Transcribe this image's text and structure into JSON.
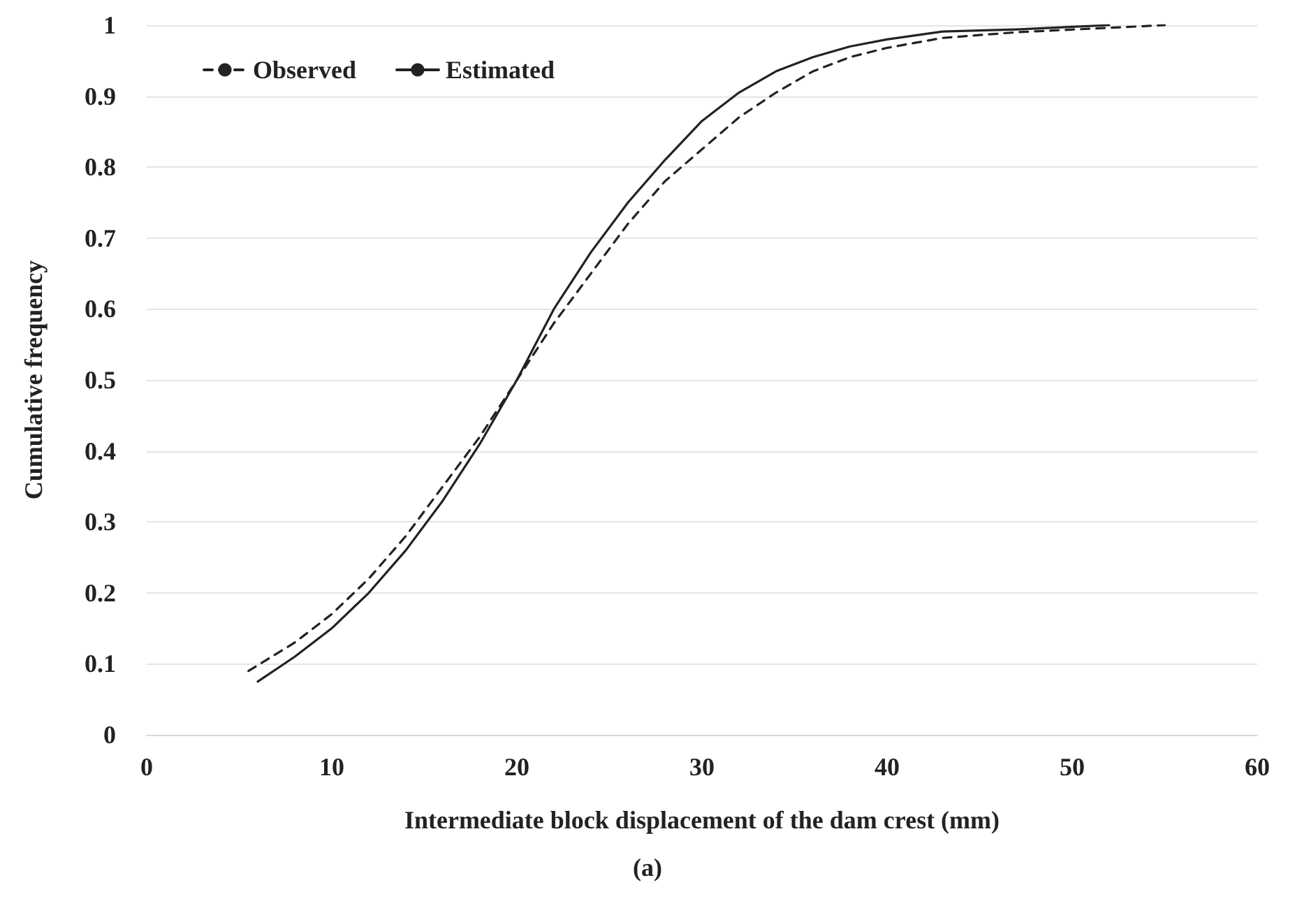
{
  "chart_data": {
    "type": "line",
    "xlabel": "Intermediate block displacement of the dam crest (mm)",
    "ylabel": "Cumulative frequency",
    "annotations": [
      "(a)"
    ],
    "series": [
      {
        "name": "Observed",
        "color": "#222222",
        "line_style": "dashed",
        "x": [
          5.5,
          8,
          10,
          12,
          14,
          16,
          18,
          20,
          22,
          24,
          26,
          28,
          30,
          32,
          34,
          36,
          38,
          40,
          43,
          47,
          51,
          55
        ],
        "values": [
          0.09,
          0.13,
          0.17,
          0.22,
          0.28,
          0.35,
          0.42,
          0.5,
          0.58,
          0.65,
          0.72,
          0.78,
          0.825,
          0.87,
          0.905,
          0.935,
          0.955,
          0.968,
          0.982,
          0.99,
          0.995,
          1.0
        ]
      },
      {
        "name": "Estimated",
        "color": "#222222",
        "line_style": "solid",
        "x": [
          6,
          8,
          10,
          12,
          14,
          16,
          18,
          20,
          22,
          24,
          26,
          28,
          30,
          32,
          34,
          36,
          38,
          40,
          43,
          47,
          52
        ],
        "values": [
          0.075,
          0.11,
          0.15,
          0.2,
          0.26,
          0.33,
          0.41,
          0.5,
          0.6,
          0.68,
          0.75,
          0.81,
          0.865,
          0.905,
          0.935,
          0.955,
          0.97,
          0.98,
          0.991,
          0.994,
          1.0
        ]
      }
    ],
    "xlim": [
      0,
      60
    ],
    "xticks": [
      0,
      10,
      20,
      30,
      40,
      50,
      60
    ],
    "ylim": [
      0,
      1
    ],
    "yticks": [
      0,
      0.1,
      0.2,
      0.3,
      0.4,
      0.5,
      0.6,
      0.7,
      0.8,
      0.9,
      1
    ],
    "grid": "y",
    "legend": "top left",
    "marker": "none"
  }
}
